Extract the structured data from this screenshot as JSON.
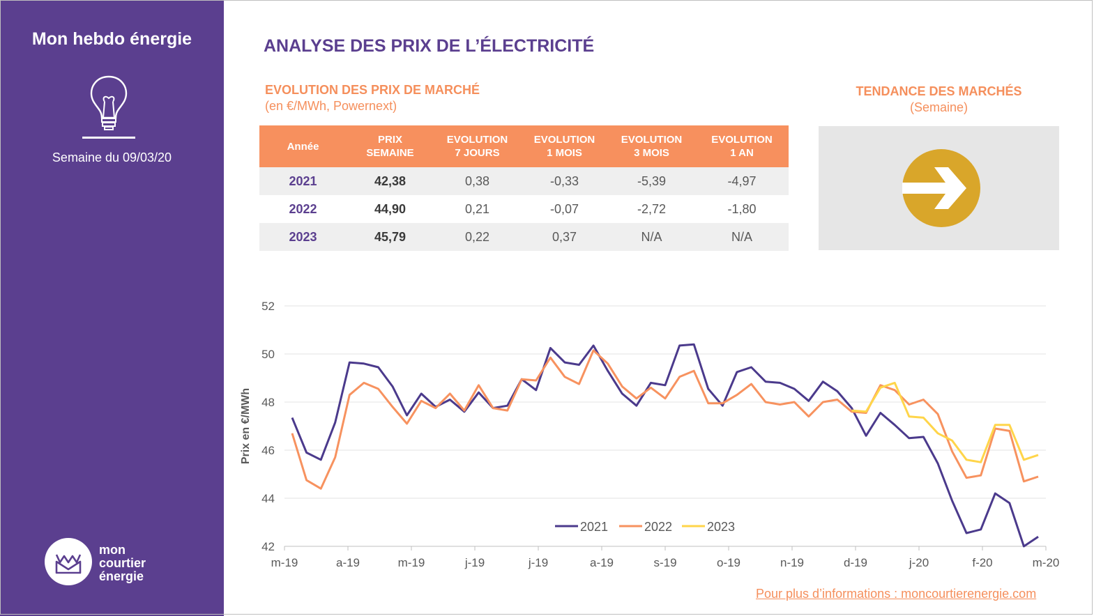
{
  "sidebar": {
    "title": "Mon hebdo énergie",
    "week_label": "Semaine du 09/03/20",
    "logo_lines": [
      "mon",
      "courtier",
      "énergie"
    ],
    "icons": {
      "bulb": "lightbulb-icon",
      "logo": "envelope-crown-icon"
    }
  },
  "main": {
    "title": "ANALYSE DES PRIX DE L’ÉLECTRICITÉ",
    "section_title": "EVOLUTION DES PRIX DE MARCHÉ",
    "section_subtitle": "(en €/MWh, Powernext)"
  },
  "table": {
    "headers": [
      "Année",
      "PRIX SEMAINE",
      "EVOLUTION 7 JOURS",
      "EVOLUTION 1 MOIS",
      "EVOLUTION 3 MOIS",
      "EVOLUTION 1 AN"
    ],
    "rows": [
      [
        "2021",
        "42,38",
        "0,38",
        "-0,33",
        "-5,39",
        "-4,97"
      ],
      [
        "2022",
        "44,90",
        "0,21",
        "-0,07",
        "-2,72",
        "-1,80"
      ],
      [
        "2023",
        "45,79",
        "0,22",
        "0,37",
        "N/A",
        "N/A"
      ]
    ]
  },
  "trend": {
    "title": "TENDANCE DES MARCHÉS",
    "subtitle": "(Semaine)",
    "direction": "stable",
    "icon": "right-arrow-icon"
  },
  "footer": {
    "link_text": "Pour plus d’informations : moncourtierenergie.com"
  },
  "colors": {
    "purple": "#5b3f8f",
    "orange": "#f58f5c",
    "yellow": "#ffd54a",
    "arrow_gold": "#d9a62a",
    "series_2021": "#4b3a8c",
    "series_2022": "#f7925f",
    "series_2023": "#ffd54a"
  },
  "chart_data": {
    "type": "line",
    "ylabel": "Prix en €/MWh",
    "ylim": [
      42,
      52
    ],
    "yticks": [
      42,
      44,
      46,
      48,
      50,
      52
    ],
    "x_tick_labels": [
      "m-19",
      "a-19",
      "m-19",
      "j-19",
      "j-19",
      "a-19",
      "s-19",
      "o-19",
      "n-19",
      "d-19",
      "j-20",
      "f-20",
      "m-20"
    ],
    "grid": true,
    "legend_position": "bottom-center",
    "series": [
      {
        "name": "2021",
        "values": [
          47.35,
          45.9,
          45.6,
          47.15,
          49.65,
          49.6,
          49.45,
          48.65,
          47.45,
          48.35,
          47.8,
          48.1,
          47.6,
          48.4,
          47.75,
          47.85,
          48.95,
          48.5,
          50.25,
          49.65,
          49.55,
          50.35,
          49.3,
          48.35,
          47.85,
          48.8,
          48.7,
          50.35,
          50.4,
          48.55,
          47.85,
          49.25,
          49.45,
          48.85,
          48.8,
          48.55,
          48.05,
          48.85,
          48.45,
          47.75,
          46.6,
          47.55,
          47.05,
          46.5,
          46.55,
          45.45,
          43.9,
          42.55,
          42.7,
          44.2,
          43.8,
          42.0,
          42.4
        ]
      },
      {
        "name": "2022",
        "values": [
          46.7,
          44.75,
          44.4,
          45.7,
          48.3,
          48.8,
          48.55,
          47.8,
          47.1,
          48.05,
          47.75,
          48.35,
          47.65,
          48.7,
          47.75,
          47.65,
          48.95,
          48.9,
          49.85,
          49.05,
          48.75,
          50.15,
          49.6,
          48.65,
          48.15,
          48.6,
          48.15,
          49.05,
          49.3,
          47.95,
          47.95,
          48.3,
          48.75,
          48.0,
          47.9,
          48.0,
          47.4,
          48.0,
          48.1,
          47.6,
          47.55,
          48.7,
          48.5,
          47.9,
          48.1,
          47.5,
          45.95,
          44.85,
          44.95,
          46.9,
          46.8,
          44.7,
          44.9
        ]
      },
      {
        "name": "2023",
        "start_index": 39,
        "values": [
          47.65,
          47.6,
          48.6,
          48.8,
          47.4,
          47.35,
          46.7,
          46.4,
          45.6,
          45.5,
          47.05,
          47.05,
          45.6,
          45.8
        ]
      }
    ]
  }
}
